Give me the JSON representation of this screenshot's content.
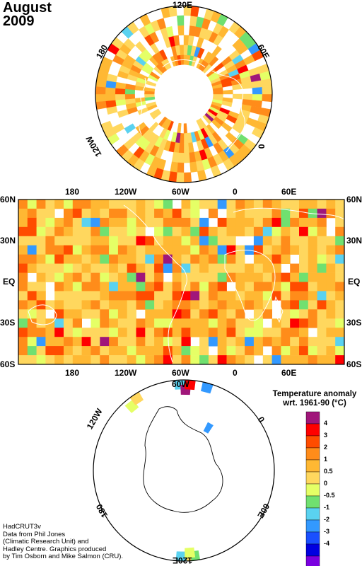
{
  "title": {
    "month": "August",
    "year": "2009"
  },
  "north_polar_map": {
    "labels": {
      "top": "120E",
      "upper_right": "60E",
      "right": "0",
      "lower_left": "120W",
      "left": "180"
    }
  },
  "equirect_map": {
    "top_labels": [
      "180",
      "120W",
      "60W",
      "0",
      "60E"
    ],
    "bottom_labels": [
      "180",
      "120W",
      "60W",
      "0",
      "60E"
    ],
    "left_labels": [
      "60N",
      "30N",
      "EQ",
      "30S",
      "60S"
    ],
    "right_labels": [
      "60N",
      "30N",
      "EQ",
      "30S",
      "60S"
    ]
  },
  "south_polar_map": {
    "labels": {
      "top": "60W",
      "upper_left": "120W",
      "right": "0",
      "lower_right": "60E",
      "lower_left": "180",
      "bottom": "120E"
    }
  },
  "legend": {
    "title_line1": "Temperature anomaly",
    "title_line2": "wrt. 1961-90  (°C)",
    "ticks": [
      "4",
      "3",
      "2",
      "1",
      "0.5",
      "0",
      "-0.5",
      "-1",
      "-2",
      "-3",
      "-4"
    ],
    "colors": [
      "#a0167a",
      "#ff0000",
      "#ff4c00",
      "#ff8c1a",
      "#ffb833",
      "#ffd75e",
      "#e5ff66",
      "#70e070",
      "#5ad2f0",
      "#3399ff",
      "#1a50ff",
      "#0000e0",
      "#7a00e0"
    ]
  },
  "credit": {
    "line1": "HadCRUT3v",
    "line2": "Data from Phil Jones",
    "line3": "(Climatic Research Unit) and",
    "line4": "Hadley Centre.  Graphics produced",
    "line5": "by Tim Osborn and Mike Salmon (CRU)."
  }
}
